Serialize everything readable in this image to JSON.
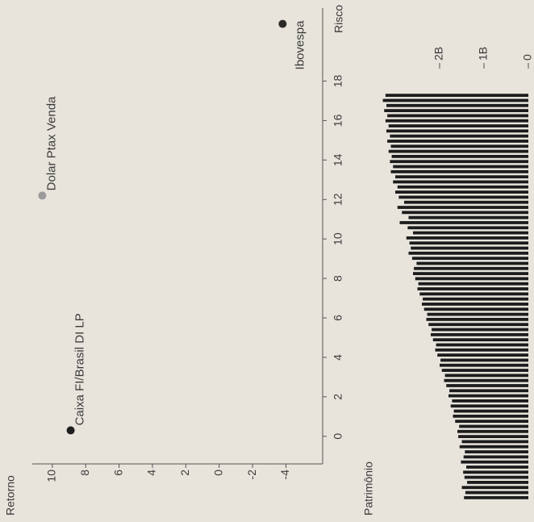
{
  "chart_data": [
    {
      "type": "scatter",
      "ylabel": "Retorno",
      "xlabel": "Risco",
      "xlim": [
        -1.4,
        21.7
      ],
      "xticks": [
        0,
        2,
        4,
        6,
        8,
        10,
        12,
        14,
        16,
        18
      ],
      "ylim": [
        -6.2,
        11.2
      ],
      "yticks": [
        10,
        8,
        6,
        4,
        2,
        0,
        -2,
        -4
      ],
      "series": [
        {
          "name": "Caixa FI/Brasil DI LP",
          "color": "#1e1e1e",
          "x": [
            0.3
          ],
          "y": [
            8.9
          ]
        },
        {
          "name": "Dolar Ptax Venda",
          "color": "#9a9a9a",
          "x": [
            12.2
          ],
          "y": [
            10.6
          ]
        },
        {
          "name": "Ibovespa",
          "color": "#2a2a2a",
          "x": [
            20.9
          ],
          "y": [
            -3.8
          ]
        }
      ]
    },
    {
      "type": "bar",
      "title": "Patrimônio",
      "color": "#1c1c1c",
      "ylim": [
        0,
        3.4
      ],
      "yticks": [
        {
          "value": 2,
          "label": "2B"
        },
        {
          "value": 1,
          "label": "1B"
        },
        0
      ],
      "values": [
        1.45,
        1.42,
        1.5,
        1.38,
        1.44,
        1.47,
        1.4,
        1.52,
        1.46,
        1.43,
        1.55,
        1.5,
        1.58,
        1.6,
        1.56,
        1.65,
        1.7,
        1.68,
        1.75,
        1.72,
        1.8,
        1.78,
        1.85,
        1.9,
        1.88,
        1.95,
        2.0,
        1.98,
        2.05,
        2.1,
        2.08,
        2.15,
        2.2,
        2.18,
        2.25,
        2.3,
        2.28,
        2.35,
        2.4,
        2.38,
        2.45,
        2.5,
        2.48,
        2.55,
        2.6,
        2.58,
        2.52,
        2.62,
        2.7,
        2.65,
        2.68,
        2.75,
        2.6,
        2.72,
        2.9,
        2.7,
        2.85,
        2.95,
        2.8,
        2.92,
        3.0,
        2.95,
        3.05,
        3.0,
        3.1,
        3.05,
        3.12,
        3.08,
        3.15,
        3.1,
        3.18,
        3.12,
        3.2,
        3.15,
        3.22,
        3.18,
        3.25,
        3.2,
        3.28,
        3.22
      ]
    }
  ]
}
